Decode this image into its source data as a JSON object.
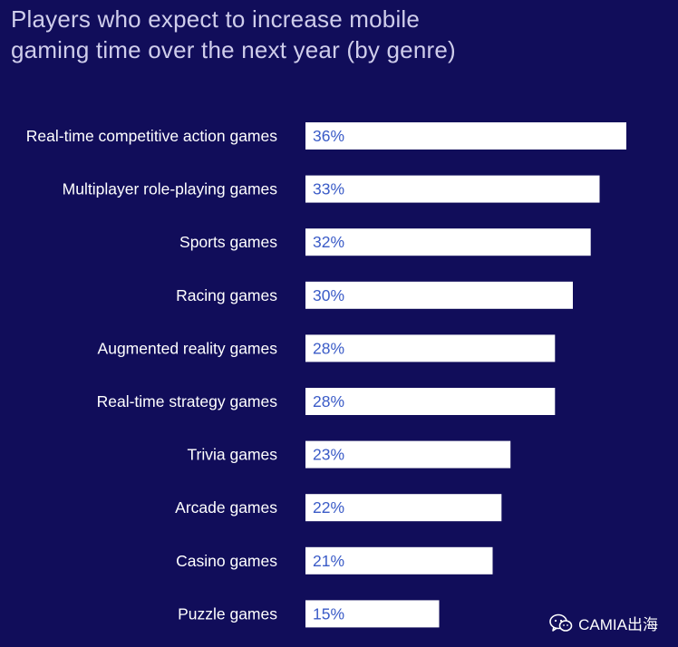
{
  "chart_data": {
    "type": "bar",
    "orientation": "horizontal",
    "title_lines": [
      "Players who expect to increase mobile",
      "gaming time over the next year (by genre)"
    ],
    "categories": [
      "Real-time competitive action games",
      "Multiplayer role-playing games",
      "Sports games",
      "Racing games",
      "Augmented reality games",
      "Real-time strategy games",
      "Trivia games",
      "Arcade games",
      "Casino games",
      "Puzzle games"
    ],
    "values": [
      36,
      33,
      32,
      30,
      28,
      28,
      23,
      22,
      21,
      15
    ],
    "value_labels": [
      "36%",
      "33%",
      "32%",
      "30%",
      "28%",
      "28%",
      "23%",
      "22%",
      "21%",
      "15%"
    ],
    "unit": "%",
    "xlim": [
      0,
      36
    ],
    "grid": false,
    "legend": "none"
  },
  "colors": {
    "background": "#110D5A",
    "bar_fill": "#FFFFFF",
    "category_label": "#FFFFFF",
    "value_label": "#3A5BC7",
    "title": "#CFCDEB"
  },
  "watermark": {
    "text": "CAMIA出海",
    "icon": "wechat-icon"
  }
}
